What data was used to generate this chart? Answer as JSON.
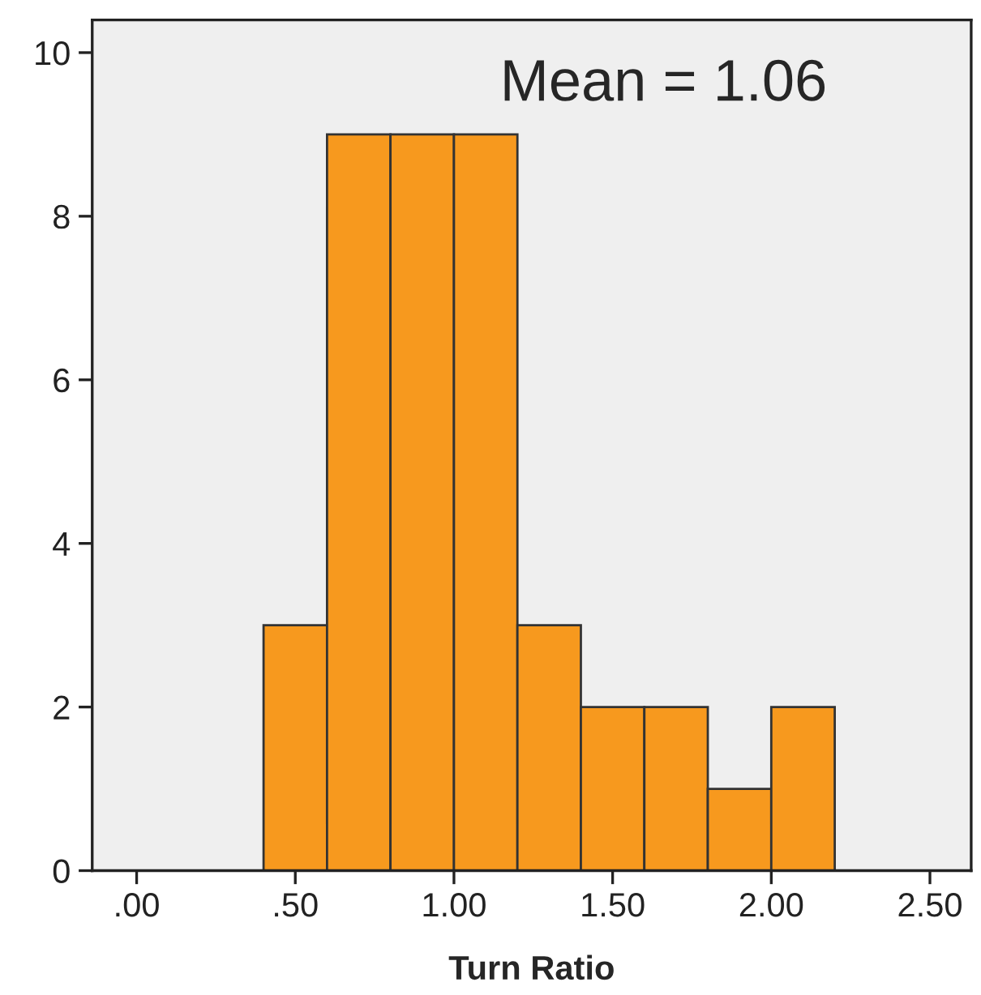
{
  "chart_data": {
    "type": "histogram",
    "xlabel": "Turn Ratio",
    "bins": [
      0.4,
      0.6,
      0.8,
      1.0,
      1.2,
      1.4,
      1.6,
      1.8,
      2.0,
      2.2
    ],
    "values": [
      3,
      9,
      9,
      9,
      3,
      2,
      2,
      1,
      2
    ],
    "color": "#f7991e",
    "xlim": [
      -0.14,
      2.63
    ],
    "ylim": [
      0,
      10.4
    ],
    "xticks": [
      {
        "value": 0,
        "label": ".00"
      },
      {
        "value": 0.5,
        "label": ".50"
      },
      {
        "value": 1.0,
        "label": "1.00"
      },
      {
        "value": 1.5,
        "label": "1.50"
      },
      {
        "value": 2.0,
        "label": "2.00"
      },
      {
        "value": 2.5,
        "label": "2.50"
      }
    ],
    "yticks": [
      0,
      2,
      4,
      6,
      8,
      10
    ],
    "annotations": [
      "Mean = 1.06"
    ],
    "grid": false,
    "legend": false
  }
}
